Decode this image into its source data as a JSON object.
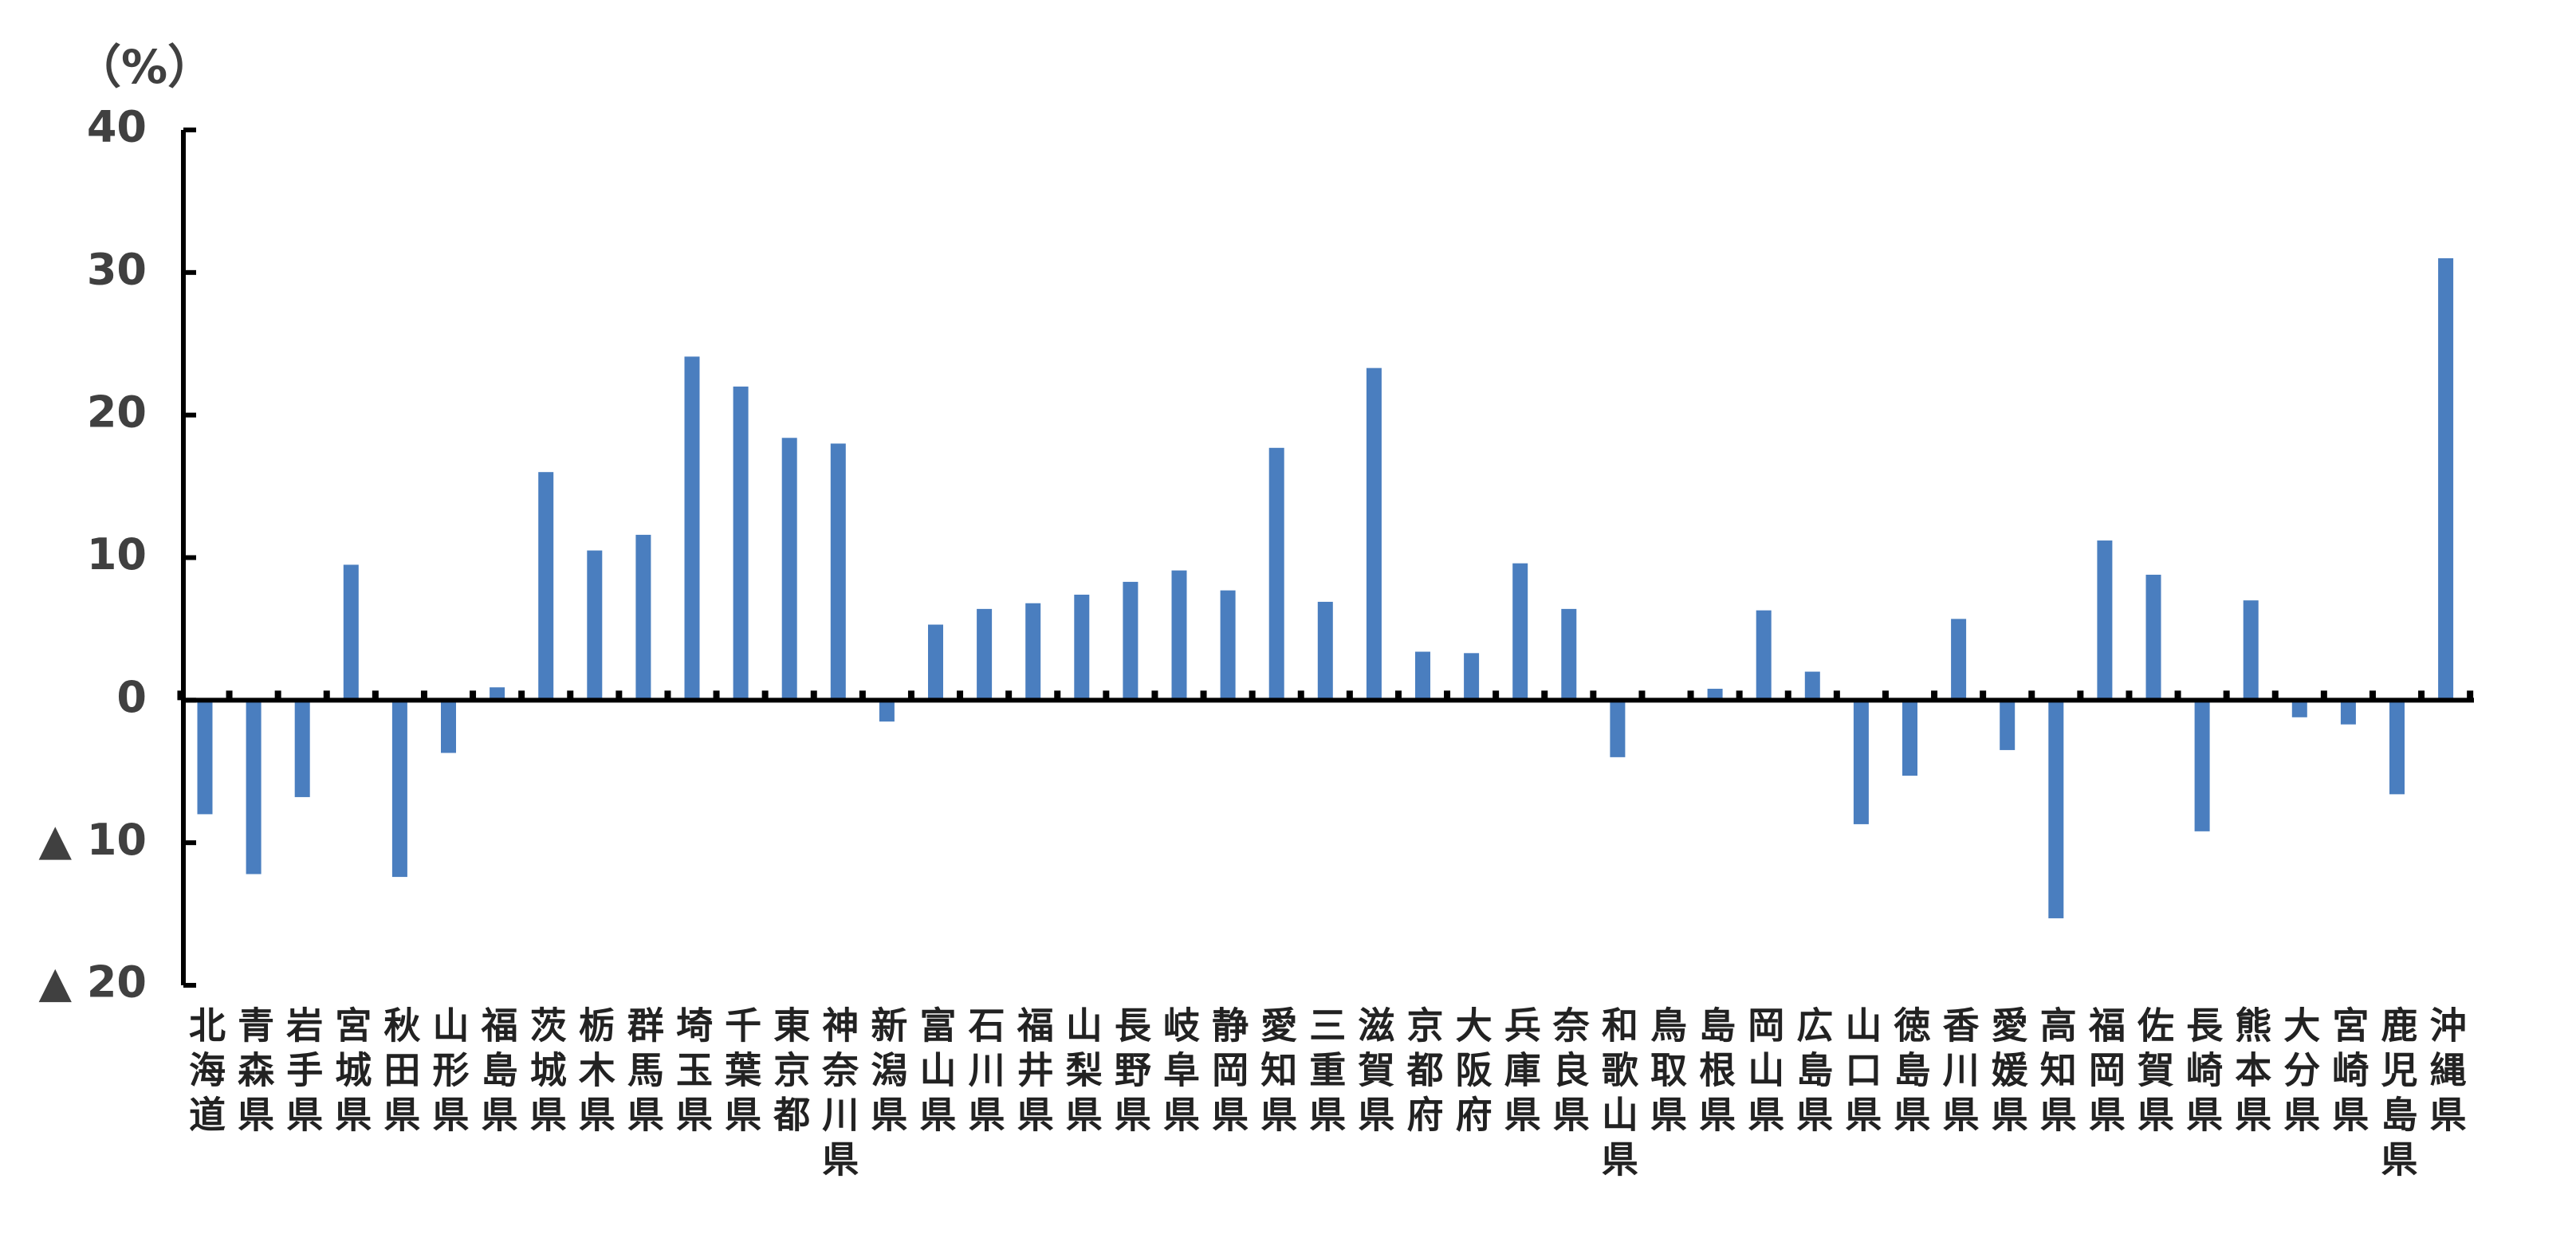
{
  "chart_data": {
    "type": "bar",
    "y_label": "（%）",
    "categories": [
      "北海道",
      "青森県",
      "岩手県",
      "宮城県",
      "秋田県",
      "山形県",
      "福島県",
      "茨城県",
      "栃木県",
      "群馬県",
      "埼玉県",
      "千葉県",
      "東京都",
      "神奈川県",
      "新潟県",
      "富山県",
      "石川県",
      "福井県",
      "山梨県",
      "長野県",
      "岐阜県",
      "静岡県",
      "愛知県",
      "三重県",
      "滋賀県",
      "京都府",
      "大阪府",
      "兵庫県",
      "奈良県",
      "和歌山県",
      "鳥取県",
      "島根県",
      "岡山県",
      "広島県",
      "山口県",
      "徳島県",
      "香川県",
      "愛媛県",
      "高知県",
      "福岡県",
      "佐賀県",
      "長崎県",
      "熊本県",
      "大分県",
      "宮崎県",
      "鹿児島県",
      "沖縄県"
    ],
    "values": [
      -8.0,
      -12.2,
      -6.8,
      9.5,
      -12.4,
      -3.7,
      0.9,
      16.0,
      10.5,
      11.6,
      24.1,
      22.0,
      18.4,
      18.0,
      -1.5,
      5.3,
      6.4,
      6.8,
      7.4,
      8.3,
      9.1,
      7.7,
      17.7,
      6.9,
      23.3,
      3.4,
      3.3,
      9.6,
      6.4,
      -4.0,
      0.0,
      0.8,
      6.3,
      2.0,
      -8.7,
      -5.3,
      5.7,
      -3.5,
      -15.3,
      11.2,
      8.8,
      -9.2,
      7.0,
      -1.2,
      -1.7,
      -6.6,
      31.0
    ],
    "color": "#4a7ebf",
    "ylim": [
      -20,
      40
    ],
    "yticks": [
      {
        "value": -20,
        "label": "▲ 20"
      },
      {
        "value": -10,
        "label": "▲ 10"
      },
      0,
      10,
      20,
      30,
      40
    ],
    "grid": false
  }
}
